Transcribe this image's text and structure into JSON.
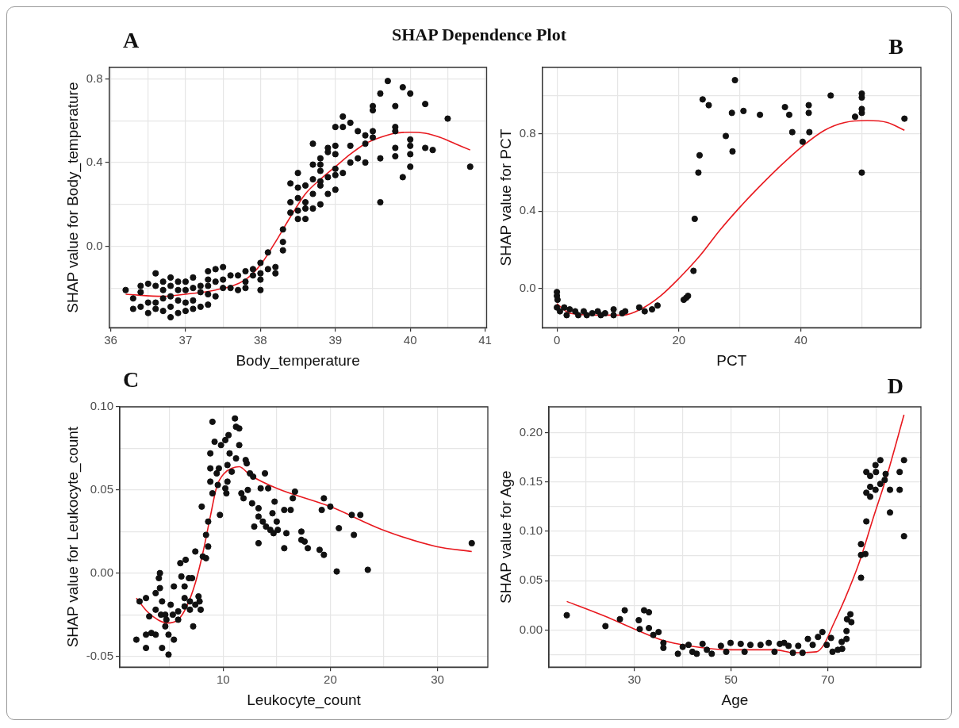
{
  "chart_data": [
    {
      "type": "scatter",
      "title": "SHAP Dependence Plot",
      "annotations": [
        "A"
      ],
      "xlabel": "Body_temperature",
      "ylabel": "SHAP value for Body_temperature",
      "xlim": [
        35.98,
        41.02
      ],
      "ylim": [
        -0.39,
        0.855
      ],
      "xticks": [
        36,
        {
          "value": 36.5,
          "label": null
        },
        37,
        {
          "value": 37.5,
          "label": null
        },
        38,
        {
          "value": 38.5,
          "label": null
        },
        39,
        {
          "value": 39.5,
          "label": null
        },
        40,
        {
          "value": 40.5,
          "label": null
        },
        41
      ],
      "yticks": [
        {
          "value": -0.2,
          "label": null
        },
        {
          "value": 0,
          "label": "0.0"
        },
        {
          "value": 0.2,
          "label": null
        },
        {
          "value": 0.4,
          "label": "0.4"
        },
        {
          "value": 0.6,
          "label": null
        },
        {
          "value": 0.8,
          "label": "0.8"
        }
      ],
      "grid": true,
      "marker": "circle",
      "series": [
        {
          "color": "#111111",
          "x": [
            36.2,
            36.3,
            36.3,
            36.4,
            36.4,
            36.4,
            36.5,
            36.5,
            36.5,
            36.6,
            36.6,
            36.6,
            36.6,
            36.7,
            36.7,
            36.7,
            36.7,
            36.8,
            36.8,
            36.8,
            36.8,
            36.8,
            36.9,
            36.9,
            36.9,
            36.9,
            37.0,
            37.0,
            37.0,
            37.0,
            37.1,
            37.1,
            37.1,
            37.1,
            37.2,
            37.2,
            37.2,
            37.3,
            37.3,
            37.3,
            37.3,
            37.3,
            37.4,
            37.4,
            37.4,
            37.5,
            37.5,
            37.5,
            37.6,
            37.6,
            37.7,
            37.7,
            37.8,
            37.8,
            37.8,
            37.9,
            37.9,
            38.0,
            38.0,
            38.0,
            38.0,
            38.1,
            38.1,
            38.2,
            38.2,
            38.3,
            38.3,
            38.3,
            38.4,
            38.4,
            38.4,
            38.5,
            38.5,
            38.5,
            38.5,
            38.5,
            38.6,
            38.6,
            38.6,
            38.6,
            38.7,
            38.7,
            38.7,
            38.7,
            38.7,
            38.8,
            38.8,
            38.8,
            38.8,
            38.8,
            38.8,
            38.9,
            38.9,
            38.9,
            38.9,
            39.0,
            39.0,
            39.0,
            39.0,
            39.0,
            39.0,
            39.1,
            39.1,
            39.1,
            39.2,
            39.2,
            39.2,
            39.3,
            39.3,
            39.4,
            39.4,
            39.4,
            39.5,
            39.5,
            39.5,
            39.5,
            39.6,
            39.6,
            39.6,
            39.7,
            39.8,
            39.8,
            39.8,
            39.8,
            39.8,
            39.9,
            39.9,
            40.0,
            40.0,
            40.0,
            40.0,
            40.0,
            40.2,
            40.2,
            40.3,
            40.5,
            40.8
          ],
          "values": [
            -0.21,
            -0.25,
            -0.3,
            -0.19,
            -0.22,
            -0.29,
            -0.18,
            -0.27,
            -0.32,
            -0.13,
            -0.19,
            -0.27,
            -0.3,
            -0.17,
            -0.21,
            -0.25,
            -0.31,
            -0.15,
            -0.19,
            -0.24,
            -0.29,
            -0.34,
            -0.17,
            -0.21,
            -0.26,
            -0.32,
            -0.17,
            -0.21,
            -0.27,
            -0.31,
            -0.15,
            -0.2,
            -0.26,
            -0.3,
            -0.19,
            -0.22,
            -0.29,
            -0.12,
            -0.16,
            -0.19,
            -0.23,
            -0.28,
            -0.11,
            -0.17,
            -0.24,
            -0.1,
            -0.16,
            -0.2,
            -0.14,
            -0.2,
            -0.14,
            -0.21,
            -0.12,
            -0.17,
            -0.2,
            -0.11,
            -0.14,
            -0.08,
            -0.13,
            -0.16,
            -0.21,
            -0.03,
            -0.11,
            -0.1,
            -0.13,
            0.08,
            0.02,
            -0.02,
            0.21,
            0.16,
            0.3,
            0.35,
            0.28,
            0.23,
            0.17,
            0.13,
            0.29,
            0.21,
            0.18,
            0.13,
            0.49,
            0.39,
            0.32,
            0.25,
            0.18,
            0.42,
            0.39,
            0.36,
            0.31,
            0.29,
            0.2,
            0.47,
            0.45,
            0.33,
            0.25,
            0.57,
            0.48,
            0.44,
            0.37,
            0.34,
            0.27,
            0.62,
            0.57,
            0.35,
            0.59,
            0.48,
            0.4,
            0.55,
            0.42,
            0.53,
            0.49,
            0.4,
            0.67,
            0.65,
            0.55,
            0.52,
            0.73,
            0.42,
            0.21,
            0.79,
            0.67,
            0.57,
            0.55,
            0.47,
            0.43,
            0.76,
            0.33,
            0.73,
            0.51,
            0.48,
            0.44,
            0.38,
            0.68,
            0.47,
            0.46,
            0.61,
            0.38
          ]
        },
        {
          "type": "line",
          "color": "#e8191f",
          "marker": "none",
          "x": [
            36.2,
            36.7,
            37.0,
            37.4,
            37.8,
            38.0,
            38.2,
            38.4,
            38.6,
            38.8,
            39.0,
            39.2,
            39.4,
            39.6,
            39.8,
            40.0,
            40.2,
            40.4,
            40.6,
            40.8
          ],
          "values": [
            -0.23,
            -0.24,
            -0.23,
            -0.21,
            -0.16,
            -0.09,
            0.02,
            0.14,
            0.25,
            0.32,
            0.38,
            0.44,
            0.49,
            0.52,
            0.54,
            0.545,
            0.54,
            0.52,
            0.49,
            0.46
          ]
        }
      ]
    },
    {
      "type": "scatter",
      "annotations": [
        "B"
      ],
      "xlabel": "PCT",
      "ylabel": "SHAP value for PCT",
      "xlim": [
        -2.4,
        59.7
      ],
      "ylim": [
        -0.205,
        1.146
      ],
      "xticks": [
        0,
        {
          "value": 10,
          "label": null
        },
        20,
        {
          "value": 30,
          "label": null
        },
        40,
        {
          "value": 50,
          "label": null
        }
      ],
      "yticks": [
        {
          "value": 0,
          "label": "0.0"
        },
        {
          "value": 0.2,
          "label": null
        },
        {
          "value": 0.4,
          "label": "0.4"
        },
        {
          "value": 0.6,
          "label": null
        },
        {
          "value": 0.8,
          "label": "0.8"
        },
        {
          "value": 1.0,
          "label": null
        }
      ],
      "grid": true,
      "marker": "circle",
      "series": [
        {
          "color": "#111111",
          "x": [
            0,
            0,
            0.1,
            0,
            0.5,
            1.2,
            1.6,
            2.1,
            3,
            3.5,
            4.4,
            4.9,
            5.8,
            6.7,
            7.2,
            7.9,
            9.3,
            9.3,
            10.7,
            11.2,
            13.5,
            14.4,
            15.6,
            16.5,
            20.8,
            21.2,
            21.5,
            22.4,
            22.6,
            23.2,
            23.4,
            23.9,
            24.9,
            27.7,
            28.7,
            28.8,
            29.2,
            30.6,
            33.3,
            37.4,
            38.1,
            38.6,
            40.3,
            41.3,
            41.3,
            41.4,
            44.9,
            48.9,
            50,
            50,
            50,
            50,
            50,
            57
          ],
          "values": [
            -0.02,
            -0.04,
            -0.06,
            -0.1,
            -0.12,
            -0.1,
            -0.14,
            -0.11,
            -0.12,
            -0.14,
            -0.12,
            -0.14,
            -0.13,
            -0.12,
            -0.14,
            -0.13,
            -0.11,
            -0.14,
            -0.13,
            -0.12,
            -0.1,
            -0.12,
            -0.11,
            -0.09,
            -0.06,
            -0.05,
            -0.04,
            0.09,
            0.36,
            0.6,
            0.69,
            0.98,
            0.95,
            0.79,
            0.91,
            0.71,
            1.08,
            0.92,
            0.9,
            0.94,
            0.9,
            0.81,
            0.76,
            0.95,
            0.91,
            0.81,
            1.0,
            0.89,
            1.01,
            0.99,
            0.93,
            0.91,
            0.6,
            0.88
          ]
        },
        {
          "type": "line",
          "color": "#e8191f",
          "marker": "none",
          "x": [
            0,
            2.1,
            6.7,
            10.9,
            13.7,
            17,
            20,
            23.5,
            26.7,
            30,
            33.3,
            36.5,
            40,
            43.9,
            47.2,
            50.9,
            54.2,
            57
          ],
          "values": [
            -0.08,
            -0.13,
            -0.14,
            -0.14,
            -0.11,
            -0.04,
            0.05,
            0.17,
            0.3,
            0.42,
            0.53,
            0.63,
            0.73,
            0.82,
            0.86,
            0.87,
            0.86,
            0.82
          ]
        }
      ]
    },
    {
      "type": "scatter",
      "annotations": [
        "C"
      ],
      "xlabel": "Leukocyte_count",
      "ylabel": "SHAP value for Leukocyte_count",
      "xlim": [
        0.35,
        34.7
      ],
      "ylim": [
        -0.0565,
        0.1
      ],
      "xticks": [
        {
          "value": 5,
          "label": null
        },
        10,
        {
          "value": 15,
          "label": null
        },
        20,
        {
          "value": 25,
          "label": null
        },
        30
      ],
      "yticks": [
        {
          "value": -0.05,
          "label": "-0.05"
        },
        {
          "value": -0.025,
          "label": null
        },
        {
          "value": 0,
          "label": "0.00"
        },
        {
          "value": 0.025,
          "label": null
        },
        {
          "value": 0.05,
          "label": "0.05"
        },
        {
          "value": 0.075,
          "label": null
        },
        {
          "value": 0.1,
          "label": "0.10"
        }
      ],
      "grid": true,
      "marker": "circle",
      "series": [
        {
          "color": "#111111",
          "x": [
            1.9,
            2.2,
            2.8,
            2.8,
            2.8,
            3.3,
            3.7,
            3.7,
            3.7,
            4.0,
            4.1,
            4.1,
            4.3,
            4.3,
            4.9,
            4.6,
            4.6,
            4.9,
            5.4,
            5.1,
            5.4,
            5.8,
            6.0,
            6.1,
            6.4,
            6.5,
            6.4,
            6.8,
            7.1,
            7.2,
            6.9,
            7.4,
            7.7,
            7.9,
            8.0,
            8.1,
            8.4,
            8.4,
            8.6,
            8.6,
            8.8,
            8.8,
            8.8,
            9.0,
            9.0,
            9.2,
            9.4,
            9.5,
            9.7,
            9.8,
            9.6,
            10.2,
            10.2,
            10.3,
            10.4,
            10.5,
            10.6,
            10.4,
            10.8,
            11.1,
            11.2,
            11.2,
            11.5,
            11.5,
            11.7,
            11.9,
            12.1,
            12.2,
            12.3,
            12.5,
            12.7,
            12.8,
            12.9,
            13.3,
            13.3,
            13.3,
            13.5,
            13.7,
            13.9,
            14.0,
            14.2,
            14.4,
            14.6,
            14.7,
            14.8,
            15.0,
            15.1,
            15.7,
            15.7,
            15.9,
            16.3,
            16.5,
            16.7,
            17.3,
            17.3,
            17.6,
            17.9,
            19.0,
            19.2,
            19.4,
            19.4,
            20.0,
            20.6,
            20.8,
            22.0,
            22.2,
            22.8,
            23.5,
            33.2,
            5.3,
            5.8,
            6.4,
            6.9,
            7.4,
            7.8,
            4.7,
            4.2,
            3.1
          ],
          "values": [
            -0.04,
            -0.017,
            -0.015,
            -0.037,
            -0.045,
            -0.036,
            -0.012,
            -0.022,
            -0.037,
            -0.003,
            0.0,
            -0.009,
            -0.017,
            -0.045,
            -0.049,
            -0.025,
            -0.032,
            -0.037,
            -0.04,
            -0.019,
            -0.008,
            -0.028,
            0.006,
            -0.002,
            -0.008,
            0.008,
            -0.015,
            -0.003,
            -0.003,
            -0.032,
            -0.022,
            0.013,
            -0.014,
            -0.022,
            0.04,
            0.01,
            0.023,
            0.009,
            0.031,
            0.016,
            0.055,
            0.072,
            0.063,
            0.091,
            0.048,
            0.079,
            0.06,
            0.053,
            0.035,
            0.077,
            0.063,
            0.051,
            0.08,
            0.048,
            0.055,
            0.083,
            0.072,
            0.065,
            0.061,
            0.093,
            0.069,
            0.088,
            0.087,
            0.077,
            0.048,
            0.045,
            0.068,
            0.066,
            0.05,
            0.06,
            0.042,
            0.058,
            0.028,
            0.039,
            0.034,
            0.018,
            0.051,
            0.031,
            0.06,
            0.028,
            0.051,
            0.026,
            0.036,
            0.024,
            0.043,
            0.031,
            0.026,
            0.015,
            0.038,
            0.024,
            0.038,
            0.045,
            0.049,
            0.025,
            0.02,
            0.019,
            0.015,
            0.014,
            0.038,
            0.011,
            0.045,
            0.04,
            0.001,
            0.027,
            0.035,
            0.023,
            0.035,
            0.002,
            0.018,
            -0.025,
            -0.023,
            -0.02,
            -0.017,
            -0.019,
            -0.017,
            -0.028,
            -0.025,
            -0.026
          ]
        },
        {
          "type": "line",
          "color": "#e8191f",
          "marker": "none",
          "x": [
            1.9,
            2.9,
            3.9,
            4.8,
            5.8,
            6.6,
            7.4,
            8.1,
            8.8,
            9.4,
            10.1,
            10.8,
            11.5,
            12.5,
            15.0,
            20.0,
            24.9,
            29.9,
            33.2
          ],
          "values": [
            -0.015,
            -0.023,
            -0.028,
            -0.03,
            -0.028,
            -0.02,
            -0.006,
            0.012,
            0.034,
            0.052,
            0.06,
            0.063,
            0.064,
            0.059,
            0.051,
            0.04,
            0.026,
            0.016,
            0.013
          ]
        }
      ]
    },
    {
      "type": "scatter",
      "annotations": [
        "D"
      ],
      "xlabel": "Age",
      "ylabel": "SHAP value for Age",
      "xlim": [
        12.3,
        89.3
      ],
      "ylim": [
        -0.0375,
        0.226
      ],
      "xticks": [
        {
          "value": 20,
          "label": null
        },
        30,
        {
          "value": 40,
          "label": null
        },
        50,
        {
          "value": 60,
          "label": null
        },
        70,
        {
          "value": 80,
          "label": null
        }
      ],
      "yticks": [
        {
          "value": -0.025,
          "label": null
        },
        {
          "value": 0,
          "label": "0.00"
        },
        {
          "value": 0.025,
          "label": null
        },
        {
          "value": 0.05,
          "label": "0.05"
        },
        {
          "value": 0.075,
          "label": null
        },
        {
          "value": 0.1,
          "label": "0.10"
        },
        {
          "value": 0.125,
          "label": null
        },
        {
          "value": 0.15,
          "label": "0.15"
        },
        {
          "value": 0.175,
          "label": null
        },
        {
          "value": 0.2,
          "label": "0.20"
        }
      ],
      "grid": true,
      "marker": "circle",
      "series": [
        {
          "color": "#111111",
          "x": [
            16,
            24,
            27,
            28,
            30.9,
            31.1,
            32,
            33,
            33,
            33.9,
            35,
            36,
            36,
            39,
            40,
            41.2,
            42,
            42.9,
            44.1,
            45,
            46,
            47.9,
            49,
            49.9,
            52,
            52.8,
            54,
            56.1,
            57.8,
            59,
            60.1,
            61,
            61.9,
            62.8,
            63.9,
            64.8,
            65.9,
            66.9,
            68,
            68.9,
            69.8,
            70.7,
            71,
            72.1,
            72.9,
            73,
            73.9,
            73.9,
            74,
            74.7,
            74.9,
            76.9,
            76.9,
            76.9,
            77.8,
            78,
            78,
            78,
            78.8,
            78.8,
            78.8,
            79.9,
            79.9,
            80,
            80.9,
            80.9,
            81.8,
            82,
            82.9,
            82.9,
            84.9,
            84.9,
            85.8,
            85.8
          ],
          "values": [
            0.015,
            0.004,
            0.011,
            0.02,
            0.01,
            0.001,
            0.02,
            0.018,
            0.002,
            -0.005,
            -0.002,
            -0.013,
            -0.018,
            -0.024,
            -0.017,
            -0.015,
            -0.022,
            -0.024,
            -0.014,
            -0.02,
            -0.024,
            -0.016,
            -0.022,
            -0.013,
            -0.014,
            -0.022,
            -0.015,
            -0.015,
            -0.013,
            -0.022,
            -0.014,
            -0.013,
            -0.016,
            -0.023,
            -0.016,
            -0.023,
            -0.009,
            -0.015,
            -0.007,
            -0.002,
            -0.015,
            -0.008,
            -0.022,
            -0.02,
            -0.012,
            -0.019,
            -0.009,
            -0.001,
            0.011,
            0.016,
            0.008,
            0.053,
            0.076,
            0.087,
            0.077,
            0.11,
            0.139,
            0.16,
            0.135,
            0.145,
            0.156,
            0.167,
            0.142,
            0.16,
            0.172,
            0.148,
            0.152,
            0.158,
            0.119,
            0.142,
            0.16,
            0.142,
            0.172,
            0.095
          ]
        },
        {
          "type": "line",
          "color": "#e8191f",
          "marker": "none",
          "x": [
            16,
            23.9,
            30,
            35.6,
            41.4,
            50,
            59,
            63.1,
            67.7,
            69.2,
            71.2,
            73.6,
            76.5,
            79.4,
            82.3,
            85.8
          ],
          "values": [
            0.029,
            0.014,
            0.001,
            -0.01,
            -0.016,
            -0.02,
            -0.02,
            -0.023,
            -0.022,
            -0.015,
            0.006,
            0.032,
            0.068,
            0.113,
            0.157,
            0.218
          ]
        }
      ]
    }
  ]
}
